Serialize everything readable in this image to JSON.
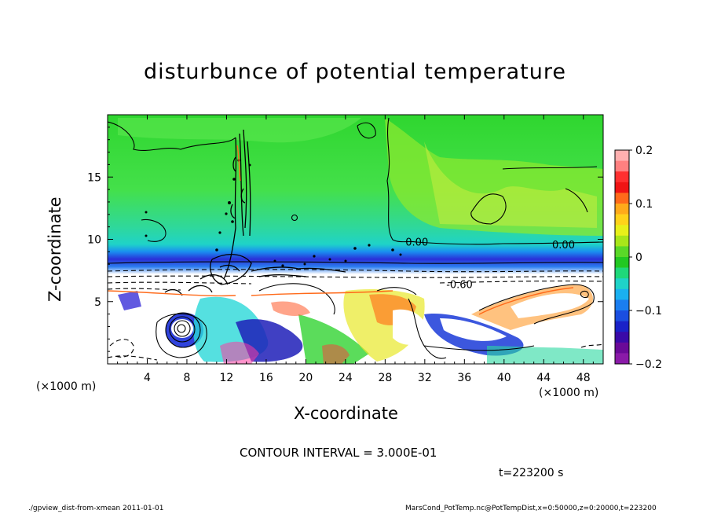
{
  "chart_data": {
    "type": "heatmap",
    "title": "disturbunce of potential temperature",
    "xlabel": "X-coordinate",
    "ylabel": "Z-coordinate",
    "x_unit_left": "(×1000 m)",
    "x_unit_right": "(×1000 m)",
    "xlim": [
      0,
      50
    ],
    "ylim": [
      0,
      20
    ],
    "x_ticks": [
      "4",
      "8",
      "12",
      "16",
      "20",
      "24",
      "28",
      "32",
      "36",
      "40",
      "44",
      "48"
    ],
    "x_tick_values": [
      4,
      8,
      12,
      16,
      20,
      24,
      28,
      32,
      36,
      40,
      44,
      48
    ],
    "y_ticks": [
      "5",
      "10",
      "15"
    ],
    "y_tick_values": [
      5,
      10,
      15
    ],
    "colorbar": {
      "range": [
        -0.2,
        0.2
      ],
      "tick_labels": [
        "0.2",
        "0.1",
        "0",
        "−0.1",
        "−0.2"
      ],
      "tick_values": [
        0.2,
        0.1,
        0,
        -0.1,
        -0.2
      ]
    },
    "contour_labels": [
      {
        "text": "0.00",
        "x": 31.2,
        "z": 9.8
      },
      {
        "text": "0.00",
        "x": 46.0,
        "z": 9.6
      },
      {
        "text": "-0.60",
        "x": 35.5,
        "z": 6.4
      }
    ],
    "contour_interval": "CONTOUR INTERVAL = 3.000E-01",
    "time": "t=223200 s",
    "footer_left": "./gpview_dist-from-xmean   2011-01-01",
    "footer_right": "MarsCond_PotTemp.nc@PotTempDist,x=0:50000,z=0:20000,t=223200"
  }
}
